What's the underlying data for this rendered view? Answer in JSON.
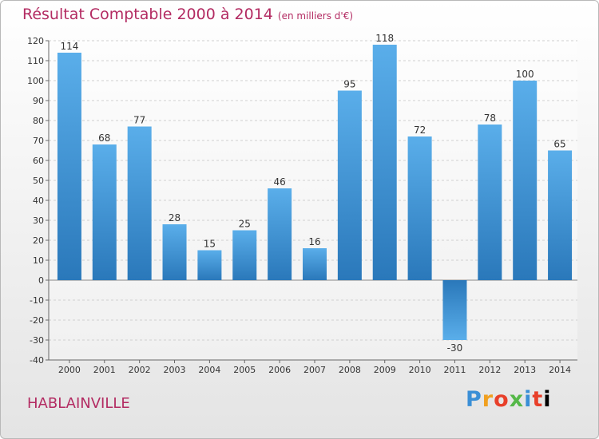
{
  "header": {
    "title": "Résultat Comptable 2000 à 2014",
    "unit": "(en milliers d'€)"
  },
  "commune": "HABLAINVILLE",
  "logo": {
    "letters": [
      "P",
      "r",
      "o",
      "x",
      "i",
      "t",
      "i"
    ]
  },
  "colors": {
    "bar": "#3b8ed6",
    "title": "#b32b62",
    "grid": "#d0d0d0"
  },
  "chart_data": {
    "type": "bar",
    "title": "Résultat Comptable 2000 à 2014",
    "subtitle": "(en milliers d'€)",
    "categories": [
      "2000",
      "2001",
      "2002",
      "2003",
      "2004",
      "2005",
      "2006",
      "2007",
      "2008",
      "2009",
      "2010",
      "2011",
      "2012",
      "2013",
      "2014"
    ],
    "values": [
      114,
      68,
      77,
      28,
      15,
      25,
      46,
      16,
      95,
      118,
      72,
      -30,
      78,
      100,
      65
    ],
    "ylim": [
      -40,
      120
    ],
    "yticks": [
      120,
      110,
      100,
      90,
      80,
      70,
      60,
      50,
      40,
      30,
      20,
      10,
      0,
      -10,
      -20,
      -30,
      -40
    ],
    "grid": true,
    "legend": "none"
  }
}
